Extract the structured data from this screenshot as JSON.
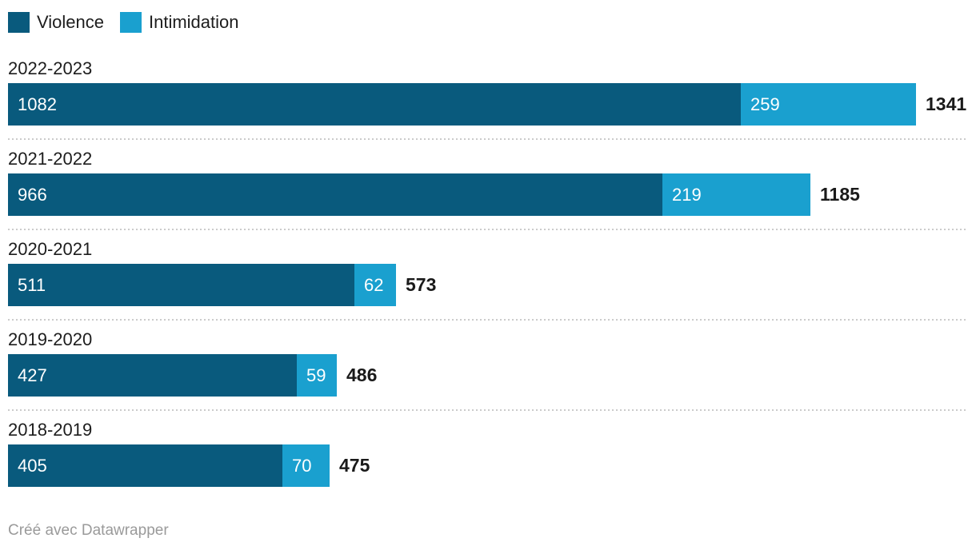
{
  "legend": {
    "items": [
      {
        "label": "Violence",
        "color": "#095a7d"
      },
      {
        "label": "Intimidation",
        "color": "#1aa0cf"
      }
    ]
  },
  "chart_data": {
    "type": "bar",
    "orientation": "horizontal",
    "stacked": true,
    "categories": [
      "2022-2023",
      "2021-2022",
      "2020-2021",
      "2019-2020",
      "2018-2019"
    ],
    "series": [
      {
        "name": "Violence",
        "color": "#095a7d",
        "values": [
          1082,
          966,
          511,
          427,
          405
        ]
      },
      {
        "name": "Intimidation",
        "color": "#1aa0cf",
        "values": [
          259,
          219,
          62,
          59,
          70
        ]
      }
    ],
    "totals": [
      1341,
      1185,
      573,
      486,
      475
    ],
    "xmax": 1341,
    "grid": false,
    "legend_position": "top-left",
    "value_label_style": "inside-white",
    "total_label_style": "bold-right",
    "row_separator": "dotted"
  },
  "footer": {
    "credit": "Créé avec Datawrapper"
  }
}
